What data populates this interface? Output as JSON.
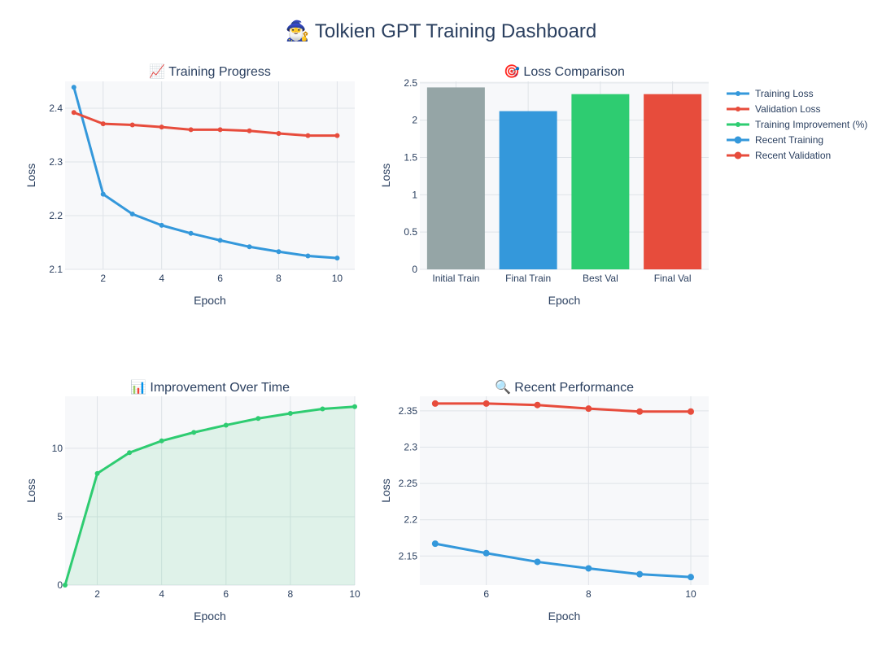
{
  "title": "🧙‍♂️ Tolkien GPT Training Dashboard",
  "colors": {
    "train": "#3498db",
    "val": "#e74c3c",
    "improve": "#2ecc71",
    "gray": "#95a5a6",
    "plot_bg": "#f7f8fa",
    "grid": "#dfe3e8"
  },
  "legend": [
    {
      "label": "Training Loss",
      "color": "#3498db",
      "marker": "small"
    },
    {
      "label": "Validation Loss",
      "color": "#e74c3c",
      "marker": "small"
    },
    {
      "label": "Training Improvement (%)",
      "color": "#2ecc71",
      "marker": "small"
    },
    {
      "label": "Recent Training",
      "color": "#3498db",
      "marker": "large"
    },
    {
      "label": "Recent Validation",
      "color": "#e74c3c",
      "marker": "large"
    }
  ],
  "chart_data": [
    {
      "type": "line",
      "title": "📈 Training Progress",
      "xlabel": "Epoch",
      "ylabel": "Loss",
      "xlim": [
        0.7,
        10.6
      ],
      "ylim": [
        2.1,
        2.45
      ],
      "xticks": [
        2,
        4,
        6,
        8,
        10
      ],
      "yticks": [
        2.1,
        2.2,
        2.3,
        2.4
      ],
      "x": [
        1,
        2,
        3,
        4,
        5,
        6,
        7,
        8,
        9,
        10
      ],
      "series": [
        {
          "name": "Training Loss",
          "color": "#3498db",
          "values": [
            2.439,
            2.24,
            2.203,
            2.182,
            2.167,
            2.154,
            2.142,
            2.133,
            2.125,
            2.121
          ]
        },
        {
          "name": "Validation Loss",
          "color": "#e74c3c",
          "values": [
            2.392,
            2.371,
            2.369,
            2.365,
            2.36,
            2.36,
            2.358,
            2.353,
            2.349,
            2.349
          ]
        }
      ]
    },
    {
      "type": "bar",
      "title": "🎯 Loss Comparison",
      "xlabel": "Epoch",
      "ylabel": "Loss",
      "ylim": [
        0,
        2.52
      ],
      "yticks": [
        0,
        0.5,
        1,
        1.5,
        2,
        2.5
      ],
      "yticklabels": [
        "0",
        "0.5",
        "1",
        "1.5",
        "2",
        "2.5"
      ],
      "categories": [
        "Initial Train",
        "Final Train",
        "Best Val",
        "Final Val"
      ],
      "values": [
        2.439,
        2.121,
        2.349,
        2.349
      ],
      "colors": [
        "#95a5a6",
        "#3498db",
        "#2ecc71",
        "#e74c3c"
      ]
    },
    {
      "type": "area",
      "title": "📊 Improvement Over Time",
      "xlabel": "Epoch",
      "ylabel": "Loss",
      "xlim": [
        1,
        10
      ],
      "ylim": [
        0,
        13.8
      ],
      "xticks": [
        2,
        4,
        6,
        8,
        10
      ],
      "yticks": [
        0,
        5,
        10
      ],
      "x": [
        1,
        2,
        3,
        4,
        5,
        6,
        7,
        8,
        9,
        10
      ],
      "series": [
        {
          "name": "Training Improvement (%)",
          "color": "#2ecc71",
          "values": [
            0,
            8.16,
            9.68,
            10.54,
            11.16,
            11.69,
            12.18,
            12.55,
            12.88,
            13.04
          ]
        }
      ]
    },
    {
      "type": "line",
      "title": "🔍 Recent Performance",
      "xlabel": "Epoch",
      "ylabel": "Loss",
      "xlim": [
        4.7,
        10.35
      ],
      "ylim": [
        2.11,
        2.37
      ],
      "xticks": [
        6,
        8,
        10
      ],
      "yticks": [
        2.15,
        2.2,
        2.25,
        2.3,
        2.35
      ],
      "yticklabels": [
        "2.15",
        "2.2",
        "2.25",
        "2.3",
        "2.35"
      ],
      "x": [
        5,
        6,
        7,
        8,
        9,
        10
      ],
      "series": [
        {
          "name": "Recent Training",
          "color": "#3498db",
          "values": [
            2.167,
            2.154,
            2.142,
            2.133,
            2.125,
            2.121
          ]
        },
        {
          "name": "Recent Validation",
          "color": "#e74c3c",
          "values": [
            2.36,
            2.36,
            2.358,
            2.353,
            2.349,
            2.349
          ]
        }
      ]
    }
  ]
}
